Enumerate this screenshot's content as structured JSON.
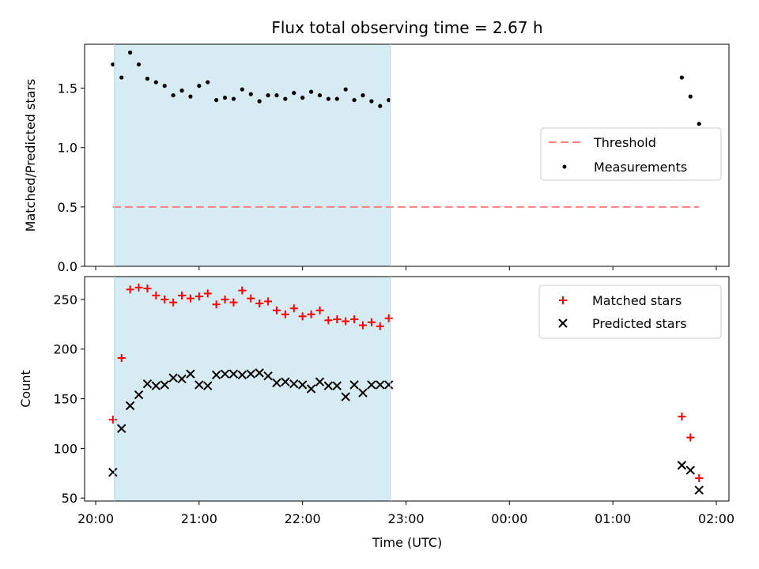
{
  "figure": {
    "title": "Flux total observing time = 2.67 h"
  },
  "chart_data": [
    {
      "type": "scatter",
      "ylabel": "Matched/Predicted stars",
      "xlabel": "",
      "ylim": [
        0,
        1.87
      ],
      "yticks": [
        "0.0",
        "0.5",
        "1.0",
        "1.5"
      ],
      "ytick_values": [
        0,
        0.5,
        1.0,
        1.5
      ],
      "x_unit": "time of day (HH:MM UTC)",
      "xlim": [
        "20:00",
        "02:10"
      ],
      "shaded_span": [
        "20:10",
        "22:50"
      ],
      "shade_color": "#add8e6",
      "threshold": {
        "name": "Threshold",
        "value": 0.5,
        "x_range": [
          "20:10",
          "01:50"
        ],
        "color": "#ff7f7f",
        "style": "dashed"
      },
      "legend_position": "center-right",
      "series": [
        {
          "name": "Measurements",
          "marker": "dot",
          "color": "#000000",
          "points": [
            [
              "20:10",
              1.7
            ],
            [
              "20:15",
              1.59
            ],
            [
              "20:20",
              1.8
            ],
            [
              "20:25",
              1.7
            ],
            [
              "20:30",
              1.58
            ],
            [
              "20:35",
              1.55
            ],
            [
              "20:40",
              1.52
            ],
            [
              "20:45",
              1.44
            ],
            [
              "20:50",
              1.48
            ],
            [
              "20:55",
              1.43
            ],
            [
              "21:00",
              1.52
            ],
            [
              "21:05",
              1.55
            ],
            [
              "21:10",
              1.4
            ],
            [
              "21:15",
              1.42
            ],
            [
              "21:20",
              1.41
            ],
            [
              "21:25",
              1.49
            ],
            [
              "21:30",
              1.45
            ],
            [
              "21:35",
              1.39
            ],
            [
              "21:40",
              1.44
            ],
            [
              "21:45",
              1.44
            ],
            [
              "21:50",
              1.41
            ],
            [
              "21:55",
              1.46
            ],
            [
              "22:00",
              1.42
            ],
            [
              "22:05",
              1.47
            ],
            [
              "22:10",
              1.44
            ],
            [
              "22:15",
              1.41
            ],
            [
              "22:20",
              1.41
            ],
            [
              "22:25",
              1.49
            ],
            [
              "22:30",
              1.4
            ],
            [
              "22:35",
              1.44
            ],
            [
              "22:40",
              1.39
            ],
            [
              "22:45",
              1.35
            ],
            [
              "22:50",
              1.4
            ],
            [
              "01:40",
              1.59
            ],
            [
              "01:45",
              1.43
            ],
            [
              "01:50",
              1.2
            ]
          ]
        }
      ]
    },
    {
      "type": "scatter",
      "ylabel": "Count",
      "xlabel": "Time (UTC)",
      "ylim": [
        47,
        273
      ],
      "yticks": [
        "50",
        "100",
        "150",
        "200",
        "250"
      ],
      "ytick_values": [
        50,
        100,
        150,
        200,
        250
      ],
      "x_unit": "time of day (HH:MM UTC)",
      "xlim": [
        "20:00",
        "02:10"
      ],
      "xticks": [
        "20:00",
        "21:00",
        "22:00",
        "23:00",
        "00:00",
        "01:00",
        "02:00"
      ],
      "shaded_span": [
        "20:10",
        "22:50"
      ],
      "shade_color": "#add8e6",
      "legend_position": "upper-right",
      "series": [
        {
          "name": "Matched stars",
          "marker": "plus",
          "color": "#ff0000",
          "points": [
            [
              "20:10",
              129
            ],
            [
              "20:15",
              191
            ],
            [
              "20:20",
              260
            ],
            [
              "20:25",
              262
            ],
            [
              "20:30",
              261
            ],
            [
              "20:35",
              254
            ],
            [
              "20:40",
              250
            ],
            [
              "20:45",
              247
            ],
            [
              "20:50",
              254
            ],
            [
              "20:55",
              251
            ],
            [
              "21:00",
              253
            ],
            [
              "21:05",
              256
            ],
            [
              "21:10",
              245
            ],
            [
              "21:15",
              250
            ],
            [
              "21:20",
              247
            ],
            [
              "21:25",
              259
            ],
            [
              "21:30",
              251
            ],
            [
              "21:35",
              246
            ],
            [
              "21:40",
              248
            ],
            [
              "21:45",
              239
            ],
            [
              "21:50",
              235
            ],
            [
              "21:55",
              241
            ],
            [
              "22:00",
              233
            ],
            [
              "22:05",
              235
            ],
            [
              "22:10",
              239
            ],
            [
              "22:15",
              229
            ],
            [
              "22:20",
              230
            ],
            [
              "22:25",
              228
            ],
            [
              "22:30",
              230
            ],
            [
              "22:35",
              224
            ],
            [
              "22:40",
              227
            ],
            [
              "22:45",
              223
            ],
            [
              "22:50",
              231
            ],
            [
              "01:40",
              132
            ],
            [
              "01:45",
              111
            ],
            [
              "01:50",
              70
            ]
          ]
        },
        {
          "name": "Predicted stars",
          "marker": "x",
          "color": "#000000",
          "points": [
            [
              "20:10",
              76
            ],
            [
              "20:15",
              120
            ],
            [
              "20:20",
              143
            ],
            [
              "20:25",
              154
            ],
            [
              "20:30",
              165
            ],
            [
              "20:35",
              163
            ],
            [
              "20:40",
              164
            ],
            [
              "20:45",
              171
            ],
            [
              "20:50",
              170
            ],
            [
              "20:55",
              175
            ],
            [
              "21:00",
              164
            ],
            [
              "21:05",
              163
            ],
            [
              "21:10",
              174
            ],
            [
              "21:15",
              175
            ],
            [
              "21:20",
              175
            ],
            [
              "21:25",
              174
            ],
            [
              "21:30",
              175
            ],
            [
              "21:35",
              176
            ],
            [
              "21:40",
              173
            ],
            [
              "21:45",
              166
            ],
            [
              "21:50",
              167
            ],
            [
              "21:55",
              165
            ],
            [
              "22:00",
              164
            ],
            [
              "22:05",
              160
            ],
            [
              "22:10",
              167
            ],
            [
              "22:15",
              163
            ],
            [
              "22:20",
              163
            ],
            [
              "22:25",
              152
            ],
            [
              "22:30",
              164
            ],
            [
              "22:35",
              156
            ],
            [
              "22:40",
              164
            ],
            [
              "22:45",
              164
            ],
            [
              "22:50",
              164
            ],
            [
              "01:40",
              83
            ],
            [
              "01:45",
              78
            ],
            [
              "01:50",
              58
            ]
          ]
        }
      ]
    }
  ]
}
